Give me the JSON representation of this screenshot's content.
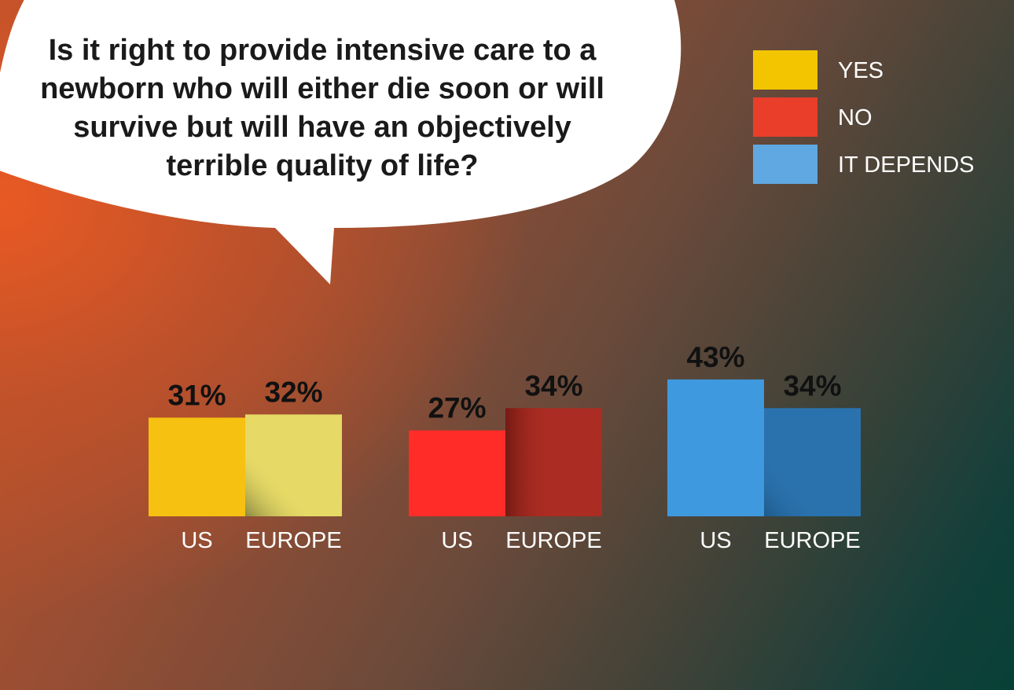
{
  "question": {
    "lines": [
      "Is it right to provide intensive care to a",
      "newborn who will either die soon or will",
      "survive but will have an objectively",
      "terrible quality of life?"
    ]
  },
  "legend": [
    {
      "label": "YES",
      "color": "#f2c500"
    },
    {
      "label": "NO",
      "color": "#ea3e2a"
    },
    {
      "label": "IT DEPENDS",
      "color": "#5fa8e2"
    }
  ],
  "chart_data": {
    "type": "bar",
    "categories": [
      "US",
      "EUROPE"
    ],
    "series": [
      {
        "name": "YES",
        "values": [
          31,
          32
        ],
        "colors": [
          "#f6c111",
          "#e6d966"
        ]
      },
      {
        "name": "NO",
        "values": [
          27,
          34
        ],
        "colors": [
          "#ff2c28",
          "#aa2c22"
        ]
      },
      {
        "name": "IT DEPENDS",
        "values": [
          43,
          34
        ],
        "colors": [
          "#3e99df",
          "#2a72ad"
        ]
      }
    ],
    "data_labels": {
      "YES": [
        "31%",
        "32%"
      ],
      "NO": [
        "27%",
        "34%"
      ],
      "IT DEPENDS": [
        "43%",
        "34%"
      ]
    },
    "unit": "%",
    "ylim": [
      0,
      100
    ],
    "grid": false,
    "legend_position": "top-right",
    "xlabel": "",
    "ylabel": ""
  }
}
